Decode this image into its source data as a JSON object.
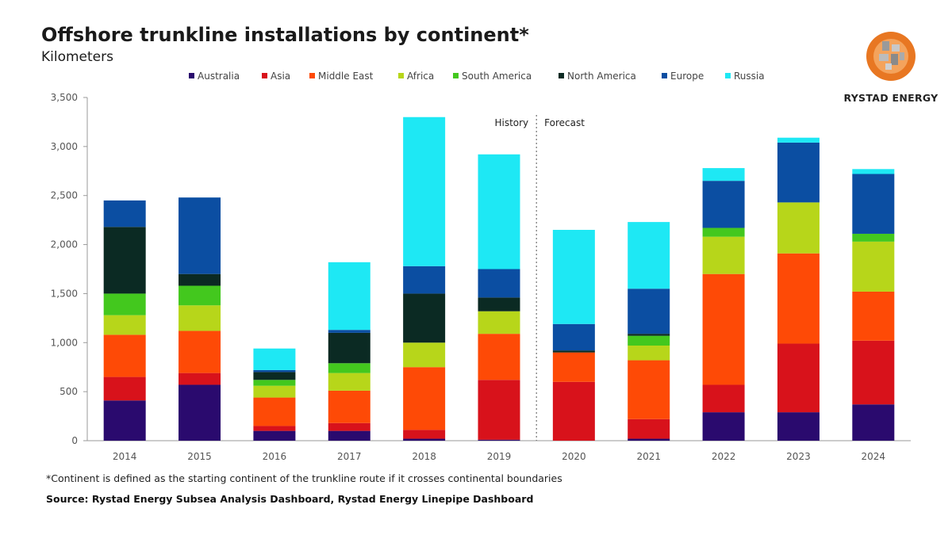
{
  "header": {
    "title": "Offshore trunkline installations by continent*",
    "subtitle": "Kilometers"
  },
  "logo": {
    "text": "RYSTAD ENERGY",
    "colors": [
      "#e87722",
      "#8a8a8a"
    ]
  },
  "footer": {
    "footnote": "*Continent is defined as the starting continent of the trunkline route if it crosses continental boundaries",
    "source": "Source: Rystad Energy Subsea Analysis Dashboard, Rystad Energy Linepipe Dashboard"
  },
  "chart_data": {
    "type": "bar",
    "stacked": true,
    "ylim": [
      0,
      3500
    ],
    "yticks": [
      0,
      500,
      1000,
      1500,
      2000,
      2500,
      3000,
      3500
    ],
    "ytick_labels": [
      "0",
      "500",
      "1,000",
      "1,500",
      "2,000",
      "2,500",
      "3,000",
      "3,500"
    ],
    "categories": [
      "2014",
      "2015",
      "2016",
      "2017",
      "2018",
      "2019",
      "2020",
      "2021",
      "2022",
      "2023",
      "2024"
    ],
    "series": [
      {
        "name": "Australia",
        "color": "#2a0a6e",
        "values": [
          410,
          570,
          100,
          100,
          20,
          10,
          0,
          20,
          290,
          290,
          370
        ]
      },
      {
        "name": "Asia",
        "color": "#d8121b",
        "values": [
          240,
          120,
          50,
          80,
          90,
          610,
          600,
          200,
          280,
          700,
          650
        ]
      },
      {
        "name": "Middle East",
        "color": "#fe4a06",
        "values": [
          430,
          430,
          290,
          330,
          640,
          470,
          300,
          600,
          1130,
          920,
          500
        ]
      },
      {
        "name": "Africa",
        "color": "#b7d61a",
        "values": [
          200,
          260,
          120,
          180,
          250,
          230,
          0,
          150,
          380,
          520,
          510
        ]
      },
      {
        "name": "South America",
        "color": "#43c81e",
        "values": [
          220,
          200,
          60,
          100,
          0,
          0,
          0,
          100,
          90,
          0,
          80
        ]
      },
      {
        "name": "North America",
        "color": "#0b2a23",
        "values": [
          680,
          120,
          80,
          310,
          500,
          140,
          20,
          20,
          0,
          0,
          0
        ]
      },
      {
        "name": "Europe",
        "color": "#0b4ea2",
        "values": [
          270,
          780,
          20,
          30,
          280,
          290,
          270,
          460,
          480,
          610,
          610
        ]
      },
      {
        "name": "Russia",
        "color": "#1ee8f4",
        "values": [
          0,
          0,
          220,
          690,
          1520,
          1170,
          960,
          680,
          130,
          50,
          50
        ]
      }
    ],
    "divider_after_category": "2019",
    "annotations": [
      "History",
      "Forecast"
    ],
    "legend_position": "top",
    "grid": false
  }
}
